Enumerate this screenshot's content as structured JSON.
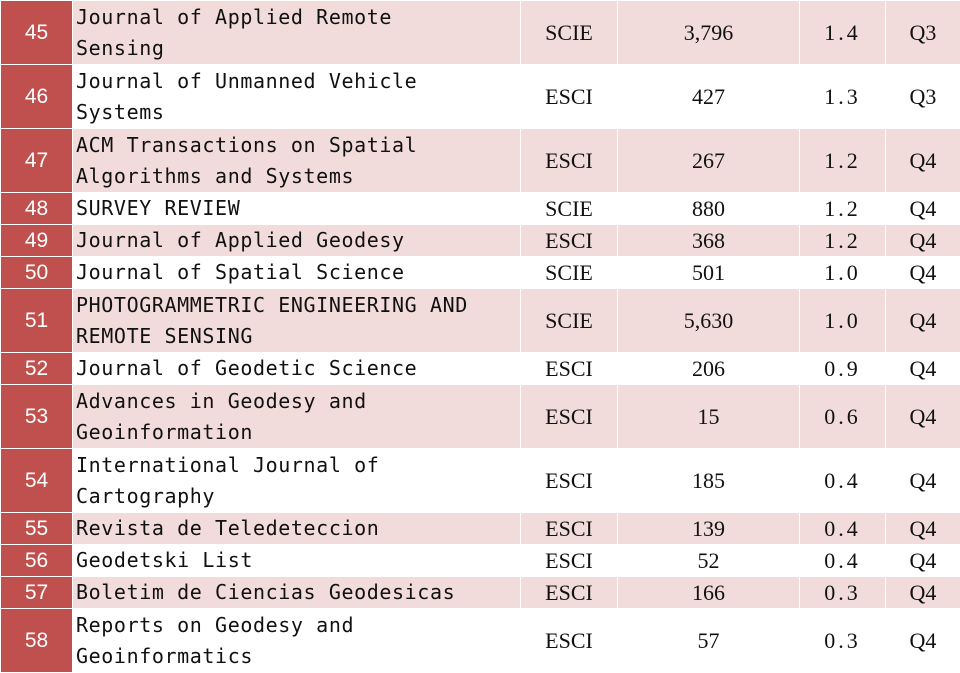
{
  "table": {
    "rows": [
      {
        "rank": "45",
        "title": [
          "Journal of Applied Remote",
          "Sensing"
        ],
        "index": "SCIE",
        "citations": "3,796",
        "impact": "1.4",
        "quartile": "Q3"
      },
      {
        "rank": "46",
        "title": [
          "Journal of Unmanned Vehicle",
          "Systems"
        ],
        "index": "ESCI",
        "citations": "427",
        "impact": "1.3",
        "quartile": "Q3"
      },
      {
        "rank": "47",
        "title": [
          "ACM Transactions on Spatial",
          "Algorithms and Systems"
        ],
        "index": "ESCI",
        "citations": "267",
        "impact": "1.2",
        "quartile": "Q4"
      },
      {
        "rank": "48",
        "title": [
          "SURVEY REVIEW"
        ],
        "index": "SCIE",
        "citations": "880",
        "impact": "1.2",
        "quartile": "Q4"
      },
      {
        "rank": "49",
        "title": [
          "Journal of Applied Geodesy"
        ],
        "index": "ESCI",
        "citations": "368",
        "impact": "1.2",
        "quartile": "Q4"
      },
      {
        "rank": "50",
        "title": [
          "Journal of Spatial Science"
        ],
        "index": "SCIE",
        "citations": "501",
        "impact": "1.0",
        "quartile": "Q4"
      },
      {
        "rank": "51",
        "title": [
          "PHOTOGRAMMETRIC ENGINEERING AND",
          "REMOTE SENSING"
        ],
        "index": "SCIE",
        "citations": "5,630",
        "impact": "1.0",
        "quartile": "Q4"
      },
      {
        "rank": "52",
        "title": [
          "Journal of Geodetic Science"
        ],
        "index": "ESCI",
        "citations": "206",
        "impact": "0.9",
        "quartile": "Q4"
      },
      {
        "rank": "53",
        "title": [
          "Advances in Geodesy and",
          "Geoinformation"
        ],
        "index": "ESCI",
        "citations": "15",
        "impact": "0.6",
        "quartile": "Q4"
      },
      {
        "rank": "54",
        "title": [
          "International Journal of",
          "Cartography"
        ],
        "index": "ESCI",
        "citations": "185",
        "impact": "0.4",
        "quartile": "Q4"
      },
      {
        "rank": "55",
        "title": [
          "Revista de Teledeteccion"
        ],
        "index": "ESCI",
        "citations": "139",
        "impact": "0.4",
        "quartile": "Q4"
      },
      {
        "rank": "56",
        "title": [
          "Geodetski List"
        ],
        "index": "ESCI",
        "citations": "52",
        "impact": "0.4",
        "quartile": "Q4"
      },
      {
        "rank": "57",
        "title": [
          "Boletim de Ciencias Geodesicas"
        ],
        "index": "ESCI",
        "citations": "166",
        "impact": "0.3",
        "quartile": "Q4"
      },
      {
        "rank": "58",
        "title": [
          "Reports on Geodesy and",
          "Geoinformatics"
        ],
        "index": "ESCI",
        "citations": "57",
        "impact": "0.3",
        "quartile": "Q4"
      }
    ]
  },
  "colors": {
    "rank_cell": "#c0504d",
    "shaded_row": "#f2dcdb",
    "plain_row": "#ffffff"
  }
}
